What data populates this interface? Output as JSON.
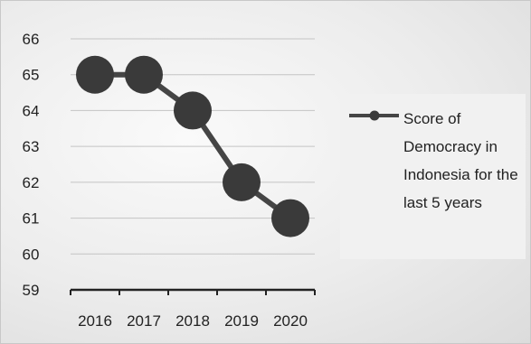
{
  "chart_data": {
    "type": "line",
    "title": "",
    "xlabel": "",
    "ylabel": "",
    "categories": [
      "2016",
      "2017",
      "2018",
      "2019",
      "2020"
    ],
    "ylim": [
      59,
      66
    ],
    "yticks": [
      59,
      60,
      61,
      62,
      63,
      64,
      65,
      66
    ],
    "grid": true,
    "legend_position": "right",
    "series": [
      {
        "name": "Score of Democracy in Indonesia for the last 5 years",
        "values": [
          65,
          65,
          64,
          62,
          61
        ],
        "color": "#454545",
        "marker_color": "#3a3a3a"
      }
    ]
  }
}
